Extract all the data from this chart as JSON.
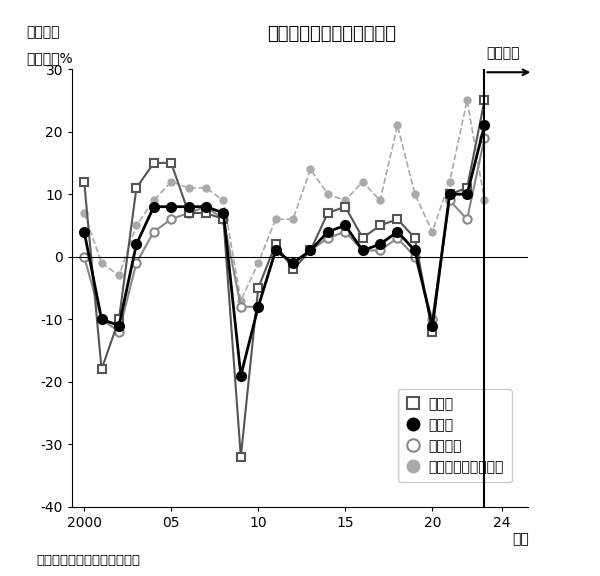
{
  "title": "設備投資増減率の長期推移",
  "label_zuuhyo": "［図表］",
  "ylabel": "前年比、%",
  "source": "（出所）　日本政策投資銀行",
  "plan_label": "【計画】",
  "years": [
    2000,
    2001,
    2002,
    2003,
    2004,
    2005,
    2006,
    2007,
    2008,
    2009,
    2010,
    2011,
    2012,
    2013,
    2014,
    2015,
    2016,
    2017,
    2018,
    2019,
    2020,
    2021,
    2022,
    2023
  ],
  "manufacturing": [
    12,
    -18,
    -10,
    11,
    15,
    15,
    7,
    7,
    6,
    -32,
    -5,
    2,
    -2,
    1,
    7,
    8,
    3,
    5,
    6,
    3,
    -12,
    10,
    11,
    25
  ],
  "all_industry": [
    4,
    -10,
    -11,
    2,
    8,
    8,
    8,
    8,
    7,
    -19,
    -8,
    1,
    -1,
    1,
    4,
    5,
    1,
    2,
    4,
    1,
    -11,
    10,
    10,
    21
  ],
  "non_manufacturing": [
    0,
    -10,
    -12,
    -1,
    4,
    6,
    7,
    8,
    6,
    -8,
    -8,
    1,
    -1,
    1,
    3,
    4,
    1,
    1,
    3,
    0,
    -10,
    9,
    6,
    19
  ],
  "all_initial_plan": [
    7,
    -1,
    -3,
    5,
    9,
    12,
    11,
    11,
    9,
    -7,
    -1,
    6,
    6,
    14,
    10,
    9,
    12,
    9,
    21,
    10,
    4,
    12,
    25,
    9
  ],
  "plan_year": 2023,
  "ylim": [
    -40,
    30
  ],
  "yticks": [
    -40,
    -30,
    -20,
    -10,
    0,
    10,
    20,
    30
  ],
  "xticks": [
    2000,
    2005,
    2010,
    2015,
    2020,
    2024
  ],
  "xlim_left": 1999.3,
  "xlim_right": 2025.5,
  "color_manufacturing": "#555555",
  "color_all_industry": "#000000",
  "color_non_manufacturing": "#888888",
  "color_initial_plan": "#aaaaaa",
  "legend_labels": [
    "製造業",
    "全産業",
    "非製造業",
    "全産業当初年度計画"
  ]
}
